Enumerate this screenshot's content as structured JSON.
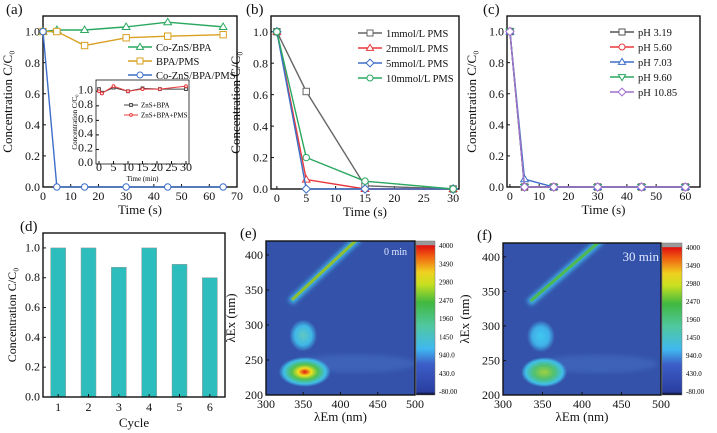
{
  "chart_data": [
    {
      "panel": "(a)",
      "type": "line",
      "xlabel": "Time (s)",
      "ylabel": "Concentration C/C₀",
      "xlim": [
        0,
        70
      ],
      "ylim": [
        0,
        1.1
      ],
      "xticks": [
        0,
        10,
        20,
        30,
        40,
        50,
        60,
        70
      ],
      "yticks": [
        0.0,
        0.2,
        0.4,
        0.6,
        0.8,
        1.0
      ],
      "legend": "top-right",
      "series": [
        {
          "name": "Co-ZnS/BPA",
          "color": "#2aa860",
          "marker": "triangle",
          "x": [
            0,
            5,
            15,
            30,
            45,
            65
          ],
          "y": [
            1.0,
            1.01,
            1.01,
            1.03,
            1.06,
            1.03
          ]
        },
        {
          "name": "BPA/PMS",
          "color": "#d9a020",
          "marker": "square",
          "x": [
            0,
            5,
            15,
            30,
            45,
            65
          ],
          "y": [
            1.0,
            1.0,
            0.91,
            0.96,
            0.97,
            0.98
          ]
        },
        {
          "name": "Co-ZnS/BPA/PMS",
          "color": "#3d6fc8",
          "marker": "circle",
          "x": [
            0,
            5,
            15,
            30,
            45,
            65
          ],
          "y": [
            1.0,
            0,
            0,
            0,
            0,
            0
          ]
        }
      ],
      "inset": {
        "type": "line",
        "xlabel": "Time (min)",
        "ylabel": "Concentration C/C₀",
        "xlim": [
          0,
          30
        ],
        "ylim": [
          0,
          1.1
        ],
        "xticks": [
          0,
          5,
          10,
          15,
          20,
          25,
          30
        ],
        "yticks": [
          0.0,
          0.2,
          0.4,
          0.6,
          0.8,
          1.0
        ],
        "series": [
          {
            "name": "ZnS+BPA",
            "color": "#444444",
            "marker": "square",
            "x": [
              0,
              1,
              5,
              10,
              15,
              21,
              30
            ],
            "y": [
              1.03,
              0.98,
              1.05,
              1.0,
              1.04,
              1.03,
              1.03
            ]
          },
          {
            "name": "ZnS+BPA+PMS",
            "color": "#e8383c",
            "marker": "circle",
            "x": [
              0,
              1,
              5,
              10,
              15,
              21,
              30
            ],
            "y": [
              1.0,
              0.97,
              1.07,
              1.0,
              1.03,
              1.03,
              1.07
            ]
          }
        ]
      }
    },
    {
      "panel": "(b)",
      "type": "line",
      "xlabel": "Time (s)",
      "ylabel": "Concentration C/C₀",
      "xlim": [
        -1,
        31
      ],
      "ylim": [
        0,
        1.1
      ],
      "xticks": [
        0,
        5,
        10,
        15,
        20,
        25,
        30
      ],
      "yticks": [
        0.0,
        0.2,
        0.4,
        0.6,
        0.8,
        1.0
      ],
      "legend": "top-right",
      "series": [
        {
          "name": "1mmol/L  PMS",
          "color": "#666666",
          "marker": "square",
          "x": [
            0,
            5,
            15,
            30
          ],
          "y": [
            1.0,
            0.62,
            0.02,
            0
          ]
        },
        {
          "name": "2mmol/L  PMS",
          "color": "#e8383c",
          "marker": "triangle",
          "x": [
            0,
            5,
            15,
            30
          ],
          "y": [
            1.0,
            0.06,
            0,
            0
          ]
        },
        {
          "name": "5mmol/L  PMS",
          "color": "#3d6fc8",
          "marker": "diamond",
          "x": [
            0,
            5,
            15,
            30
          ],
          "y": [
            1.0,
            0,
            0,
            0
          ]
        },
        {
          "name": "10mmol/L PMS",
          "color": "#2aa860",
          "marker": "circle",
          "x": [
            0,
            5,
            15,
            30
          ],
          "y": [
            1.0,
            0.2,
            0.05,
            0
          ]
        }
      ]
    },
    {
      "panel": "(c)",
      "type": "line",
      "xlabel": "Time (s)",
      "ylabel": "Concentration C/C₀",
      "xlim": [
        -1,
        65
      ],
      "ylim": [
        0,
        1.1
      ],
      "xticks": [
        0,
        10,
        20,
        30,
        40,
        50,
        60
      ],
      "yticks": [
        0.0,
        0.2,
        0.4,
        0.6,
        0.8,
        1.0
      ],
      "legend": "top-right",
      "series": [
        {
          "name": "pH 3.19",
          "color": "#555555",
          "marker": "square",
          "x": [
            0,
            5,
            15,
            30,
            45,
            60
          ],
          "y": [
            1.0,
            0,
            0,
            0,
            0,
            0
          ]
        },
        {
          "name": "pH 5.60",
          "color": "#e8383c",
          "marker": "circle",
          "x": [
            0,
            5,
            15,
            30,
            45,
            60
          ],
          "y": [
            1.0,
            0,
            0,
            0,
            0,
            0
          ]
        },
        {
          "name": "pH 7.03",
          "color": "#3d6fc8",
          "marker": "triangle",
          "x": [
            0,
            5,
            15,
            30,
            45,
            60
          ],
          "y": [
            1.0,
            0.05,
            0,
            0,
            0,
            0
          ]
        },
        {
          "name": "pH 9.60",
          "color": "#2aa860",
          "marker": "triangle-down",
          "x": [
            0,
            5,
            15,
            30,
            45,
            60
          ],
          "y": [
            1.0,
            0,
            0,
            0,
            0,
            0
          ]
        },
        {
          "name": "pH 10.85",
          "color": "#a070d0",
          "marker": "diamond",
          "x": [
            0,
            5,
            15,
            30,
            45,
            60
          ],
          "y": [
            1.0,
            0,
            0,
            0,
            0,
            0
          ]
        }
      ]
    },
    {
      "panel": "(d)",
      "type": "bar",
      "xlabel": "Cycle",
      "ylabel": "Concentration C/C₀",
      "categories": [
        "1",
        "2",
        "3",
        "4",
        "5",
        "6"
      ],
      "values": [
        1.0,
        1.0,
        0.87,
        1.0,
        0.89,
        0.8
      ],
      "color": "#2dbdbd",
      "ylim": [
        0,
        1.1
      ],
      "yticks": [
        0.0,
        0.2,
        0.4,
        0.6,
        0.8,
        1.0
      ]
    },
    {
      "panel": "(e)",
      "type": "heatmap",
      "annotation": "0 min",
      "xlabel": "λEm (nm)",
      "ylabel": "λEx (nm)",
      "xlim": [
        300,
        500
      ],
      "ylim": [
        200,
        420
      ],
      "xticks": [
        300,
        350,
        400,
        450,
        500
      ],
      "yticks": [
        200,
        250,
        300,
        350,
        400
      ],
      "colorbar_ticks": [
        "4000",
        "3490",
        "2980",
        "2470",
        "1960",
        "1450",
        "940.0",
        "430.0",
        "-80.00"
      ],
      "peaks": [
        {
          "em": 352,
          "ex": 233,
          "intensity": 3900
        },
        {
          "em": 350,
          "ex": 285,
          "intensity": 1200
        }
      ]
    },
    {
      "panel": "(f)",
      "type": "heatmap",
      "annotation": "30 min",
      "xlabel": "λEm (nm)",
      "ylabel": "λEx (nm)",
      "xlim": [
        300,
        500
      ],
      "ylim": [
        200,
        420
      ],
      "xticks": [
        300,
        350,
        400,
        450,
        500
      ],
      "yticks": [
        200,
        250,
        300,
        350,
        400
      ],
      "colorbar_ticks": [
        "4000",
        "3490",
        "2980",
        "2470",
        "1960",
        "1450",
        "940.0",
        "430.0",
        "-80.00"
      ],
      "peaks": [
        {
          "em": 352,
          "ex": 233,
          "intensity": 2000
        },
        {
          "em": 348,
          "ex": 285,
          "intensity": 900
        }
      ]
    }
  ]
}
